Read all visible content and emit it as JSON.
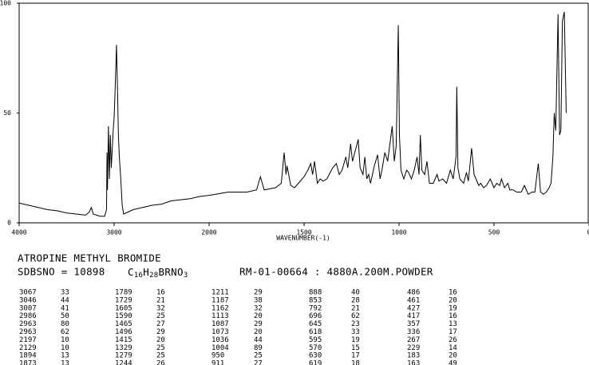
{
  "chart_data": {
    "type": "line",
    "x_label": "WAVENUMBER(-1)",
    "x": [
      4000,
      3900,
      3800,
      3700,
      3600,
      3500,
      3400,
      3300,
      3260,
      3240,
      3220,
      3150,
      3100,
      3080,
      3075,
      3070,
      3060,
      3050,
      3040,
      3030,
      3010,
      3000,
      2990,
      2975,
      2965,
      2955,
      2945,
      2930,
      2915,
      2900,
      2850,
      2800,
      2700,
      2600,
      2500,
      2400,
      2300,
      2200,
      2100,
      2000,
      1900,
      1800,
      1750,
      1730,
      1710,
      1650,
      1620,
      1605,
      1595,
      1590,
      1570,
      1550,
      1520,
      1500,
      1480,
      1465,
      1455,
      1445,
      1430,
      1415,
      1400,
      1380,
      1350,
      1330,
      1315,
      1300,
      1280,
      1270,
      1255,
      1245,
      1230,
      1215,
      1205,
      1190,
      1180,
      1170,
      1160,
      1150,
      1130,
      1113,
      1100,
      1090,
      1075,
      1060,
      1045,
      1036,
      1025,
      1015,
      1004,
      998,
      990,
      975,
      960,
      950,
      935,
      920,
      905,
      895,
      888,
      880,
      865,
      853,
      840,
      820,
      800,
      790,
      770,
      750,
      730,
      715,
      700,
      696,
      690,
      680,
      660,
      645,
      635,
      618,
      605,
      595,
      580,
      570,
      555,
      540,
      520,
      500,
      486,
      470,
      461,
      445,
      427,
      417,
      400,
      380,
      357,
      340,
      320,
      300,
      285,
      267,
      255,
      240,
      225,
      210,
      200,
      190,
      183,
      175,
      163,
      155,
      148,
      140,
      130,
      120
    ],
    "values": [
      9,
      8,
      7,
      6,
      5.5,
      4.5,
      4,
      3.5,
      5,
      7,
      4,
      3,
      3,
      6,
      32,
      15,
      44,
      20,
      40,
      25,
      42,
      48,
      60,
      81,
      62,
      40,
      30,
      20,
      8,
      4,
      5,
      6,
      7,
      8,
      8.5,
      10,
      10.5,
      11,
      12,
      12.5,
      14,
      14,
      15,
      21,
      15,
      16,
      18,
      32,
      22,
      26,
      17,
      16,
      19,
      21,
      24,
      27,
      22,
      28,
      18,
      20,
      19,
      20,
      25,
      27,
      22,
      24,
      30,
      25,
      36,
      28,
      33,
      38,
      25,
      22,
      30,
      20,
      22,
      18,
      26,
      31,
      20,
      24,
      32,
      28,
      38,
      44,
      28,
      35,
      90,
      40,
      24,
      20,
      24,
      23,
      20,
      24,
      30,
      22,
      40,
      24,
      22,
      28,
      18,
      18,
      22,
      19,
      20,
      18,
      24,
      20,
      30,
      62,
      25,
      20,
      18,
      23,
      19,
      34,
      22,
      20,
      17,
      18,
      16,
      17,
      20,
      16,
      18,
      17,
      20,
      16,
      18,
      15,
      15,
      14,
      14,
      17,
      13,
      14,
      14,
      27,
      14,
      13,
      14,
      16,
      18,
      30,
      50,
      42,
      95,
      40,
      42,
      92,
      96,
      50
    ],
    "color": "#000000",
    "xlim": [
      4000,
      0
    ],
    "xticks": [
      4000,
      3000,
      2000,
      1500,
      1000,
      500,
      0
    ],
    "ylim": [
      0,
      100
    ],
    "yticks": [
      0,
      50,
      100
    ]
  },
  "header": {
    "name": "ATROPINE METHYL BROMIDE",
    "sdbsno": "SDBSNO = 10898",
    "formula": [
      "C",
      "16",
      "H",
      "28",
      "BRNO",
      "3"
    ],
    "conditions": "RM-01-00664 : 4880A.200M.POWDER"
  },
  "peak_table": {
    "rows": [
      [
        3067,
        33,
        1789,
        16,
        1211,
        29,
        888,
        40,
        486,
        16
      ],
      [
        3046,
        44,
        1729,
        21,
        1187,
        38,
        853,
        28,
        461,
        20
      ],
      [
        3007,
        41,
        1605,
        32,
        1162,
        32,
        792,
        21,
        427,
        19
      ],
      [
        2986,
        50,
        1590,
        25,
        1113,
        20,
        696,
        62,
        417,
        16
      ],
      [
        2963,
        80,
        1465,
        27,
        1087,
        29,
        645,
        23,
        357,
        13
      ],
      [
        2963,
        62,
        1496,
        29,
        1073,
        20,
        618,
        33,
        336,
        17
      ],
      [
        2197,
        10,
        1415,
        20,
        1036,
        44,
        595,
        19,
        267,
        26
      ],
      [
        2129,
        10,
        1329,
        25,
        1004,
        89,
        570,
        15,
        229,
        14
      ],
      [
        1894,
        13,
        1279,
        25,
        950,
        25,
        630,
        17,
        183,
        20
      ],
      [
        1873,
        13,
        1244,
        26,
        911,
        27,
        619,
        18,
        163,
        49
      ]
    ]
  }
}
